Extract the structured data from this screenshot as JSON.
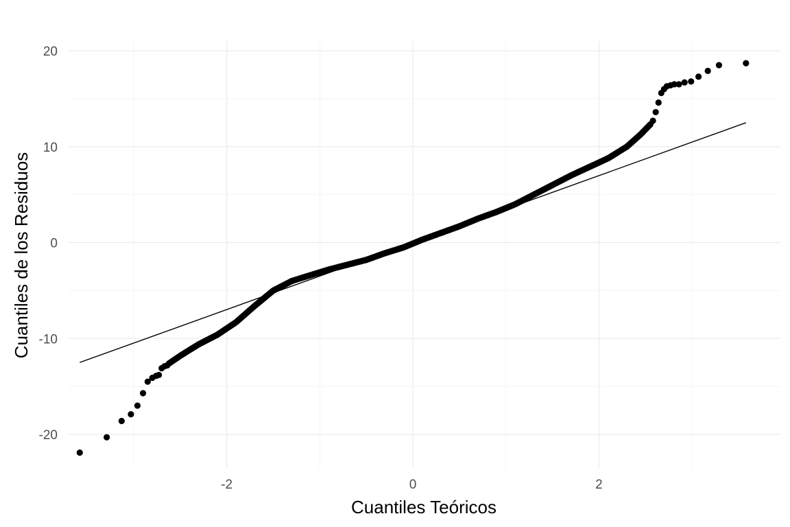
{
  "chart_data": {
    "type": "scatter",
    "title": "",
    "xlabel": "Cuantiles Teóricos",
    "ylabel": "Cuantiles de los Residuos",
    "xlim": [
      -3.7,
      3.95
    ],
    "ylim": [
      -23.5,
      21
    ],
    "x_ticks": [
      -2,
      0,
      2
    ],
    "x_tick_labels": [
      "-2",
      "0",
      "2"
    ],
    "y_ticks": [
      -20,
      -10,
      0,
      10,
      20
    ],
    "y_tick_labels": [
      "-20",
      "-10",
      "0",
      "10",
      "20"
    ],
    "grid": true,
    "legend": "none",
    "point_color": "#000000",
    "reference_line": {
      "x": [
        -3.58,
        3.58
      ],
      "y": [
        -12.5,
        12.5
      ]
    },
    "tail_points": [
      {
        "x": -3.58,
        "y": -21.9
      },
      {
        "x": -3.29,
        "y": -20.3
      },
      {
        "x": -3.13,
        "y": -18.6
      },
      {
        "x": -3.03,
        "y": -17.9
      },
      {
        "x": -2.96,
        "y": -17.0
      },
      {
        "x": -2.9,
        "y": -15.7
      },
      {
        "x": -2.85,
        "y": -14.5
      },
      {
        "x": -2.8,
        "y": -14.1
      },
      {
        "x": -2.76,
        "y": -13.9
      },
      {
        "x": -2.73,
        "y": -13.8
      },
      {
        "x": -2.7,
        "y": -13.1
      },
      {
        "x": -2.67,
        "y": -12.9
      },
      {
        "x": -2.64,
        "y": -12.8
      },
      {
        "x": 2.58,
        "y": 12.7
      },
      {
        "x": 2.61,
        "y": 13.6
      },
      {
        "x": 2.64,
        "y": 14.6
      },
      {
        "x": 2.67,
        "y": 15.6
      },
      {
        "x": 2.7,
        "y": 16.0
      },
      {
        "x": 2.73,
        "y": 16.3
      },
      {
        "x": 2.77,
        "y": 16.4
      },
      {
        "x": 2.81,
        "y": 16.5
      },
      {
        "x": 2.86,
        "y": 16.5
      },
      {
        "x": 2.92,
        "y": 16.7
      },
      {
        "x": 2.99,
        "y": 16.8
      },
      {
        "x": 3.07,
        "y": 17.3
      },
      {
        "x": 3.17,
        "y": 17.9
      },
      {
        "x": 3.29,
        "y": 18.5
      },
      {
        "x": 3.58,
        "y": 18.7
      }
    ],
    "body_curve": [
      {
        "x": -2.62,
        "y": -12.6
      },
      {
        "x": -2.5,
        "y": -11.8
      },
      {
        "x": -2.3,
        "y": -10.6
      },
      {
        "x": -2.1,
        "y": -9.6
      },
      {
        "x": -1.9,
        "y": -8.3
      },
      {
        "x": -1.7,
        "y": -6.6
      },
      {
        "x": -1.5,
        "y": -5.0
      },
      {
        "x": -1.3,
        "y": -4.0
      },
      {
        "x": -1.1,
        "y": -3.4
      },
      {
        "x": -0.9,
        "y": -2.8
      },
      {
        "x": -0.7,
        "y": -2.3
      },
      {
        "x": -0.5,
        "y": -1.8
      },
      {
        "x": -0.3,
        "y": -1.1
      },
      {
        "x": -0.1,
        "y": -0.5
      },
      {
        "x": 0.0,
        "y": -0.1
      },
      {
        "x": 0.1,
        "y": 0.3
      },
      {
        "x": 0.3,
        "y": 1.0
      },
      {
        "x": 0.5,
        "y": 1.7
      },
      {
        "x": 0.7,
        "y": 2.5
      },
      {
        "x": 0.9,
        "y": 3.2
      },
      {
        "x": 1.1,
        "y": 4.0
      },
      {
        "x": 1.3,
        "y": 5.0
      },
      {
        "x": 1.5,
        "y": 6.0
      },
      {
        "x": 1.7,
        "y": 7.0
      },
      {
        "x": 1.9,
        "y": 7.9
      },
      {
        "x": 2.1,
        "y": 8.8
      },
      {
        "x": 2.3,
        "y": 10.0
      },
      {
        "x": 2.45,
        "y": 11.3
      },
      {
        "x": 2.56,
        "y": 12.4
      }
    ]
  }
}
